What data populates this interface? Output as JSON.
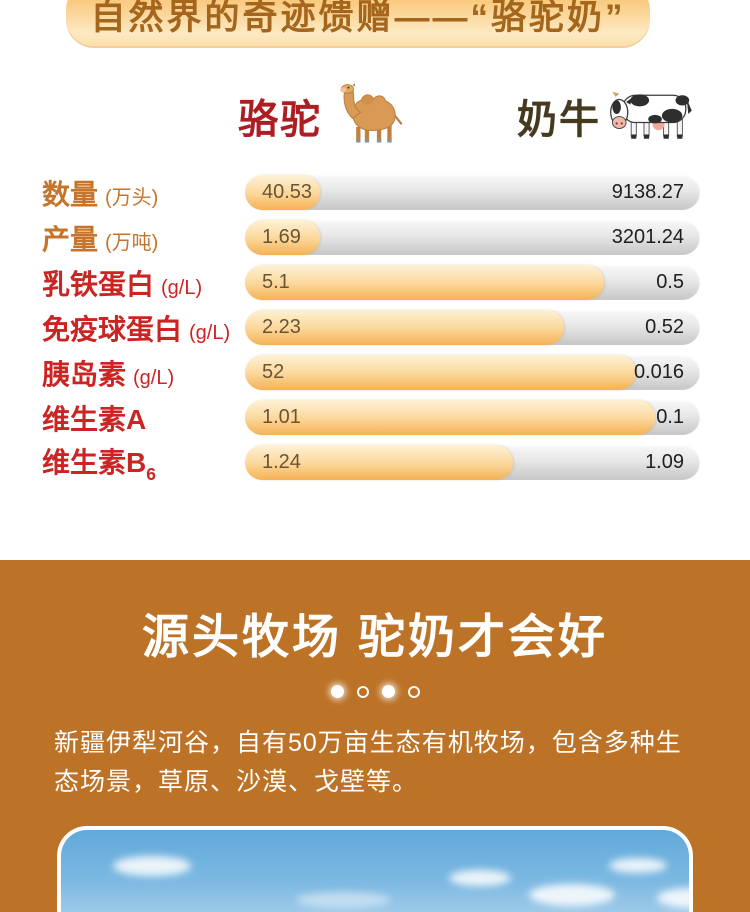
{
  "banner": {
    "title": "自然界的奇迹馈赠——“骆驼奶”"
  },
  "comparison": {
    "camel_header": "骆驼",
    "cow_header": "奶牛",
    "camel_icon": "camel-illustration",
    "cow_icon": "dairy-cow-illustration",
    "rows": [
      {
        "label": "数量",
        "label_sub": "",
        "unit": "(万头)",
        "style": "orange",
        "camel": "40.53",
        "cow": "9138.27",
        "camel_bar_pct": 16.5
      },
      {
        "label": "产量",
        "label_sub": "",
        "unit": "(万吨)",
        "style": "orange",
        "camel": "1.69",
        "cow": "3201.24",
        "camel_bar_pct": 16.5
      },
      {
        "label": "乳铁蛋白",
        "label_sub": "",
        "unit": "(g/L)",
        "style": "red",
        "camel": "5.1",
        "cow": "0.5",
        "camel_bar_pct": 79
      },
      {
        "label": "免疫球蛋白",
        "label_sub": "",
        "unit": "(g/L)",
        "style": "red",
        "camel": "2.23",
        "cow": "0.52",
        "camel_bar_pct": 70
      },
      {
        "label": "胰岛素",
        "label_sub": "",
        "unit": "(g/L)",
        "style": "red",
        "camel": "52",
        "cow": "0.016",
        "camel_bar_pct": 86
      },
      {
        "label": "维生素A",
        "label_sub": "",
        "unit": "",
        "style": "red",
        "camel": "1.01",
        "cow": "0.1",
        "camel_bar_pct": 90
      },
      {
        "label": "维生素B",
        "label_sub": "6",
        "unit": "",
        "style": "red",
        "camel": "1.24",
        "cow": "1.09",
        "camel_bar_pct": 59
      }
    ]
  },
  "pasture": {
    "title": "源头牧场 驼奶才会好",
    "dots": [
      "active",
      "inactive",
      "active",
      "inactive"
    ],
    "description": "新疆伊犁河谷，自有50万亩生态有机牧场，包含多种生态场景，草原、沙漠、戈壁等。"
  },
  "colors": {
    "brand_brown": "#bc7227",
    "banner_text": "#a3661c",
    "label_orange": "#c4752b",
    "label_red": "#cb2423",
    "camel_header_red": "#ad1e23",
    "cow_header_dark": "#453a1e",
    "bar_gold": "#f5b155",
    "bar_gray": "#c6c6c6"
  },
  "chart_data": {
    "type": "bar",
    "title": "自然界的奇迹馈赠——“骆驼奶”（骆驼 vs 奶牛 对比）",
    "categories": [
      "数量 (万头)",
      "产量 (万吨)",
      "乳铁蛋白 (g/L)",
      "免疫球蛋白 (g/L)",
      "胰岛素 (g/L)",
      "维生素A",
      "维生素B6"
    ],
    "series": [
      {
        "name": "骆驼",
        "values": [
          40.53,
          1.69,
          5.1,
          2.23,
          52,
          1.01,
          1.24
        ]
      },
      {
        "name": "奶牛",
        "values": [
          9138.27,
          3201.24,
          0.5,
          0.52,
          0.016,
          0.1,
          1.09
        ]
      }
    ],
    "xlabel": "",
    "ylabel": "",
    "legend_position": "top",
    "grid": false,
    "note": "horizontal paired pill bars; gold segment = camel value, gray segment = cow value; segment widths are illustrative, not to numeric scale"
  }
}
